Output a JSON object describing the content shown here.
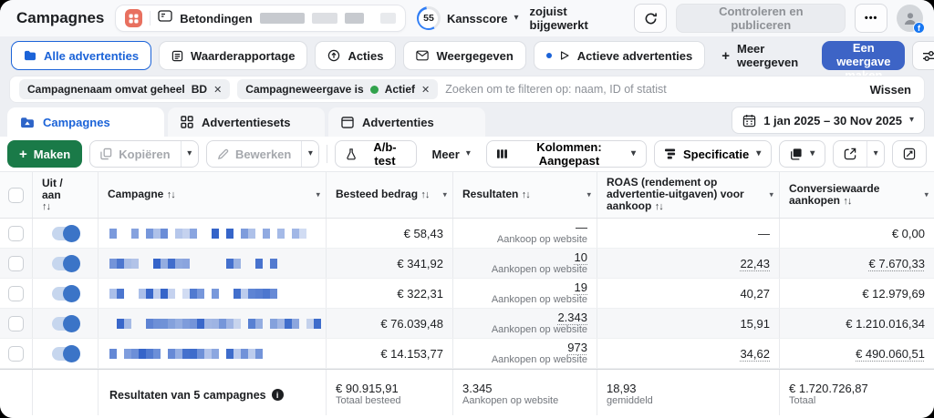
{
  "icons": {
    "caret": "▾",
    "sort": "↑↓",
    "plus": "+",
    "close": "✕",
    "ellipsis": "•••",
    "info": "i",
    "fb": "f"
  },
  "colors": {
    "accent_blue": "#1b63d8",
    "toggle_blue": "#3b74c7",
    "create_green": "#1a7a48",
    "view_button_blue": "#3d64c6",
    "active_dot_green": "#31a24c",
    "redaction_blue": "#2e5fc7"
  },
  "header": {
    "title": "Campagnes",
    "account_name": "Betondingen",
    "score_value": "55",
    "score_label": "Kansscore",
    "updated_status": "zojuist bijgewerkt",
    "review_button": "Controleren en publiceren"
  },
  "view_tabs": {
    "items": [
      {
        "label": "Alle advertenties"
      },
      {
        "label": "Waarderapportage"
      },
      {
        "label": "Acties"
      },
      {
        "label": "Weergegeven"
      },
      {
        "label": "Actieve advertenties"
      }
    ],
    "more_label": "Meer weergeven",
    "create_view_button": "Een weergave maken"
  },
  "filter_bar": {
    "chip1_label": "Campagnenaam omvat geheel",
    "chip1_value": "BD",
    "chip2_label": "Campagneweergave is",
    "chip2_value": "Actief",
    "search_placeholder": "Zoeken om te filteren op: naam, ID of statist",
    "clear_label": "Wissen"
  },
  "entity_tabs": {
    "campaigns": "Campagnes",
    "adsets": "Advertentiesets",
    "ads": "Advertenties"
  },
  "date_range": "1 jan 2025 – 30 Nov 2025",
  "toolbar": {
    "create": "Maken",
    "duplicate": "Kopiëren",
    "edit": "Bewerken",
    "ab_test": "A/b-test",
    "more": "Meer",
    "columns": "Kolommen: Aangepast",
    "breakdown": "Specificatie"
  },
  "table": {
    "headers": {
      "onoff": "Uit / aan",
      "campaign": "Campagne",
      "spend": "Besteed bedrag",
      "results": "Resultaten",
      "roas": "ROAS (rendement op advertentie-uitgaven) voor aankoop",
      "conversion": "Conversiewaarde aankopen"
    },
    "rows": [
      {
        "spend": "€ 58,43",
        "results": "—",
        "results_label": "Aankoop op website",
        "roas": "—",
        "conv": "€ 0,00",
        "toggle_on": true,
        "underlined": []
      },
      {
        "spend": "€ 341,92",
        "results": "10",
        "results_label": "Aankopen op website",
        "roas": "22,43",
        "conv": "€ 7.670,33",
        "toggle_on": true,
        "underlined": [
          "results",
          "roas",
          "conv"
        ]
      },
      {
        "spend": "€ 322,31",
        "results": "19",
        "results_label": "Aankopen op website",
        "roas": "40,27",
        "conv": "€ 12.979,69",
        "toggle_on": true,
        "underlined": [
          "results"
        ]
      },
      {
        "spend": "€ 76.039,48",
        "results": "2.343",
        "results_label": "Aankopen op website",
        "roas": "15,91",
        "conv": "€ 1.210.016,34",
        "toggle_on": true,
        "underlined": [
          "results"
        ]
      },
      {
        "spend": "€ 14.153,77",
        "results": "973",
        "results_label": "Aankopen op website",
        "roas": "34,62",
        "conv": "€ 490.060,51",
        "toggle_on": true,
        "underlined": [
          "results",
          "roas",
          "conv"
        ]
      }
    ],
    "footer": {
      "summary": "Resultaten van 5 campagnes",
      "spend_total": "€ 90.915,91",
      "spend_total_label": "Totaal besteed",
      "results_total": "3.345",
      "results_total_label": "Aankopen op website",
      "roas_avg": "18,93",
      "roas_avg_label": "gemiddeld",
      "conv_total": "€ 1.720.726,87",
      "conv_total_label": "Totaal"
    }
  }
}
